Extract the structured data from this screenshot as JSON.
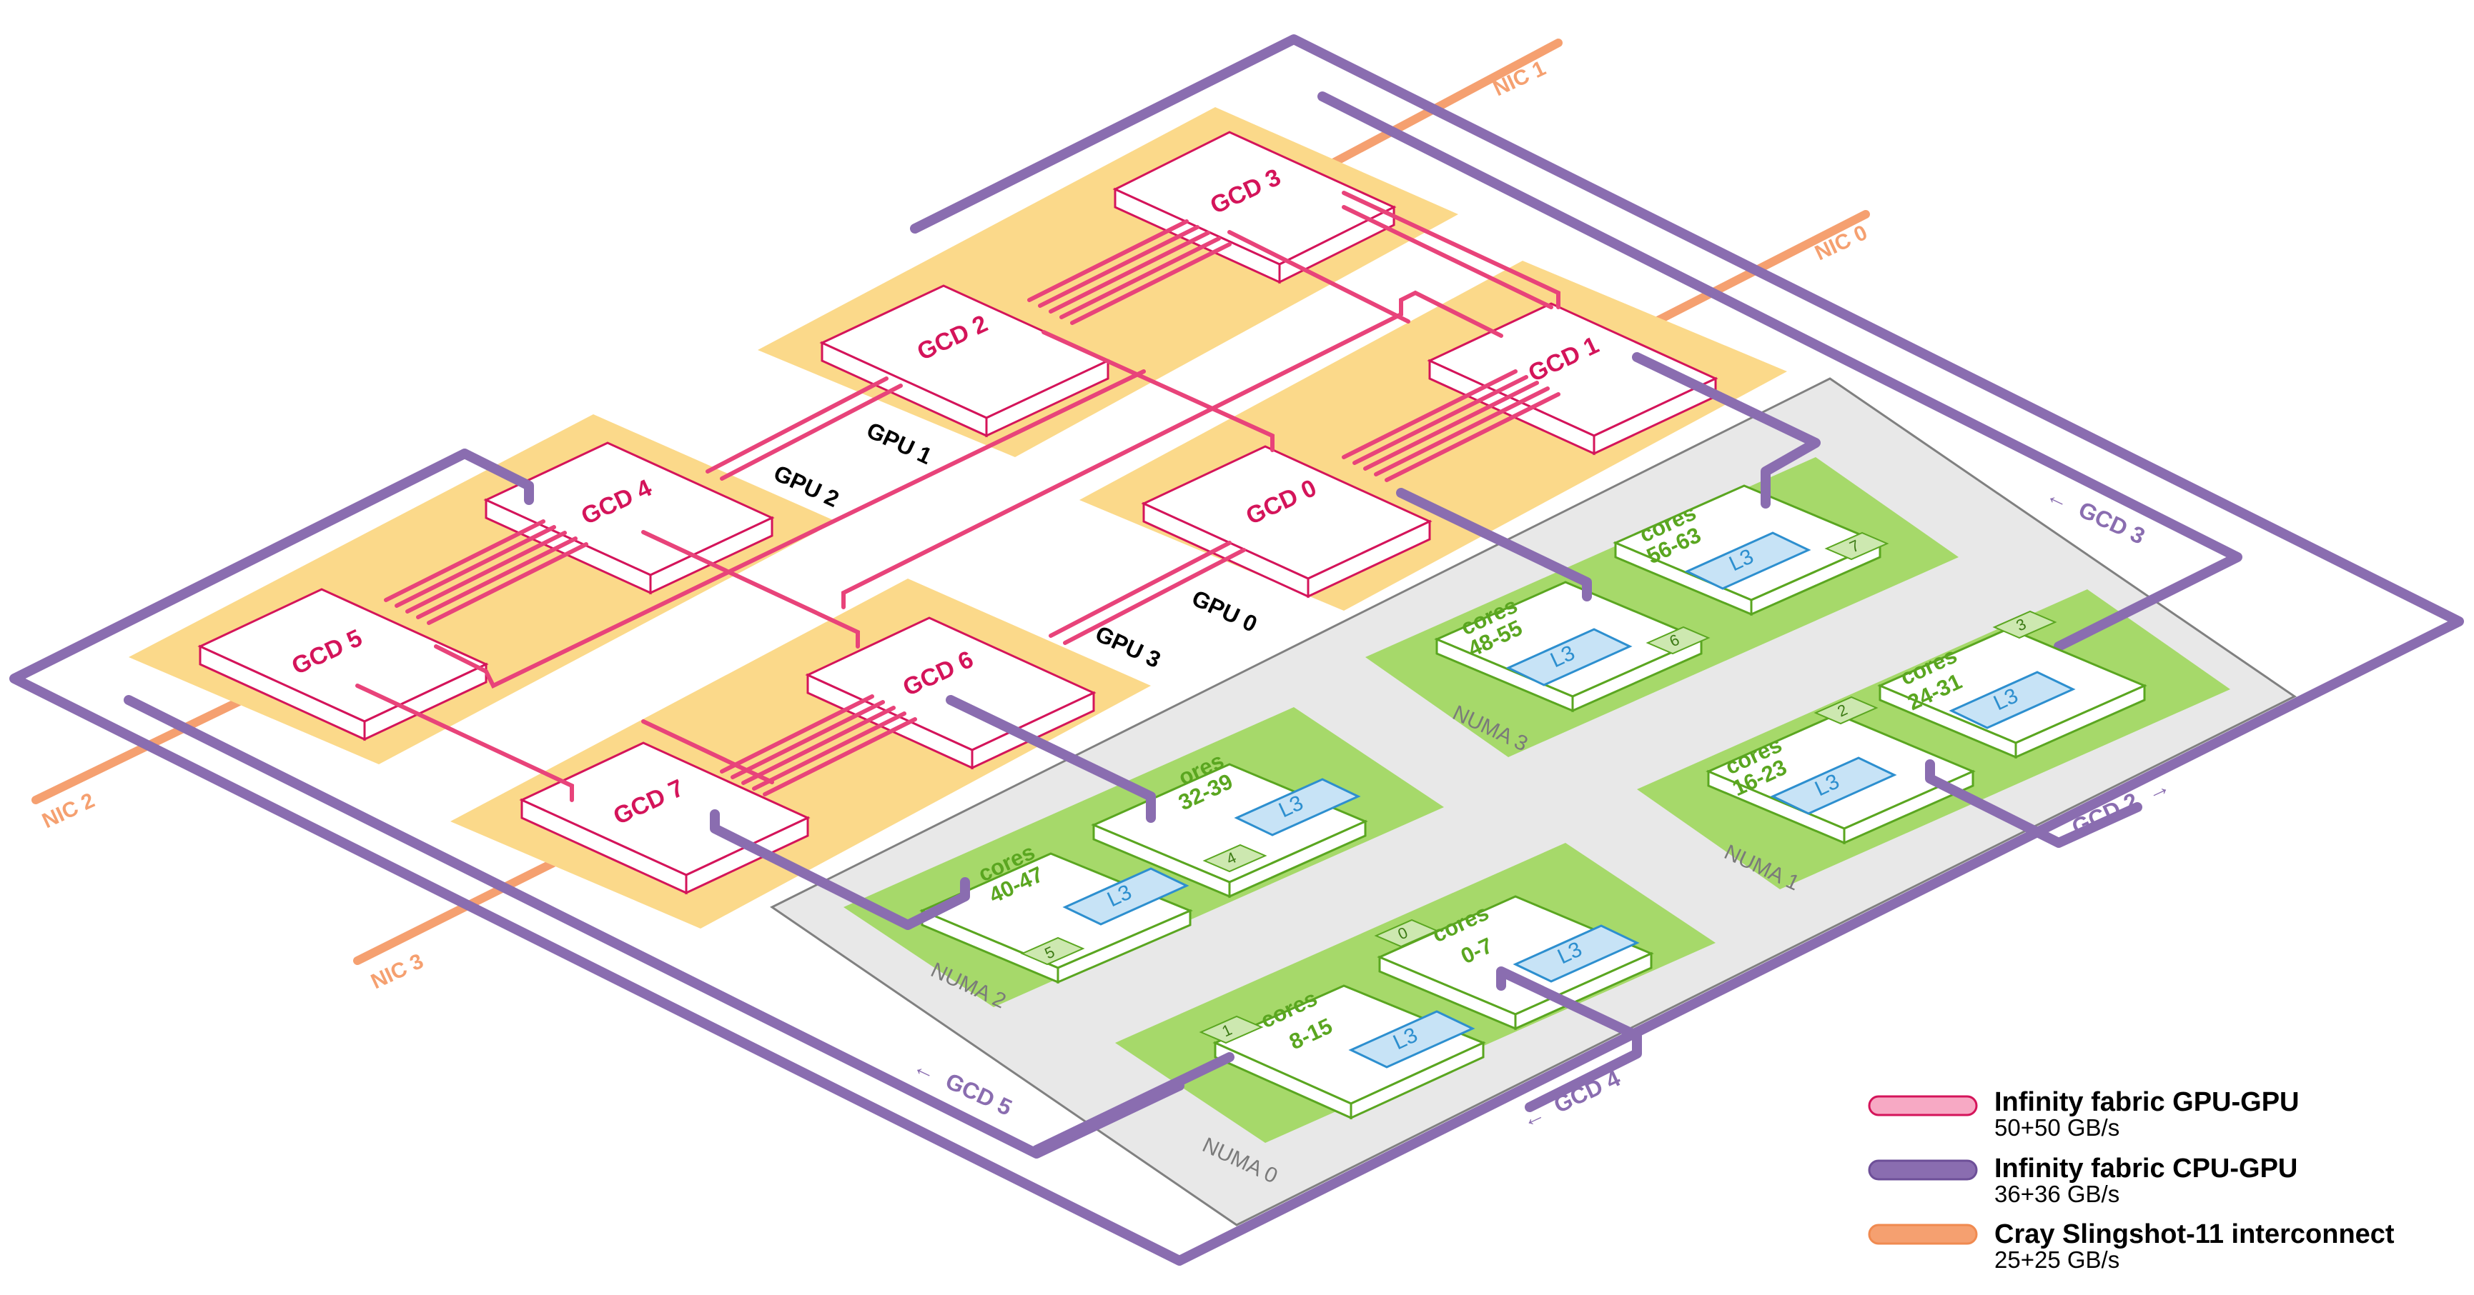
{
  "colors": {
    "gpu_gpu": "#e8437a",
    "cpu_gpu": "#8a6db0",
    "slingshot": "#f5a070",
    "gpu_pad": "#fbd98a",
    "numa_pad": "#a6d96a",
    "die_gray": "#e6e6e6",
    "l3_fill": "#c7e3f6",
    "l3_stroke": "#2d8fcf",
    "core_text": "#5aa620",
    "gcd_text": "#d4145a"
  },
  "gcds": [
    {
      "label": "GCD 0"
    },
    {
      "label": "GCD 1"
    },
    {
      "label": "GCD 2"
    },
    {
      "label": "GCD 3"
    },
    {
      "label": "GCD 4"
    },
    {
      "label": "GCD 5"
    },
    {
      "label": "GCD 6"
    },
    {
      "label": "GCD 7"
    }
  ],
  "gpus": [
    {
      "label": "GPU 0"
    },
    {
      "label": "GPU 1"
    },
    {
      "label": "GPU 2"
    },
    {
      "label": "GPU 3"
    }
  ],
  "numas": [
    {
      "label": "NUMA 0"
    },
    {
      "label": "NUMA 1"
    },
    {
      "label": "NUMA 2"
    },
    {
      "label": "NUMA 3"
    }
  ],
  "ccds": [
    {
      "cores_word": "cores",
      "range": "0-7",
      "l3": "L3",
      "id": "0"
    },
    {
      "cores_word": "cores",
      "range": "8-15",
      "l3": "L3",
      "id": "1"
    },
    {
      "cores_word": "cores",
      "range": "16-23",
      "l3": "L3",
      "id": "2"
    },
    {
      "cores_word": "cores",
      "range": "24-31",
      "l3": "L3",
      "id": "3"
    },
    {
      "cores_word": "ores",
      "range": "32-39",
      "l3": "L3",
      "id": "4"
    },
    {
      "cores_word": "cores",
      "range": "40-47",
      "l3": "L3",
      "id": "5"
    },
    {
      "cores_word": "cores",
      "range": "48-55",
      "l3": "L3",
      "id": "6"
    },
    {
      "cores_word": "cores",
      "range": "56-63",
      "l3": "L3",
      "id": "7"
    }
  ],
  "nics": [
    {
      "label": "NIC 0"
    },
    {
      "label": "NIC 1"
    },
    {
      "label": "NIC 2"
    },
    {
      "label": "NIC 3"
    }
  ],
  "offpage_links": [
    {
      "label": "GCD 2",
      "arrow": "→"
    },
    {
      "label": "GCD 3",
      "arrow": "←"
    },
    {
      "label": "GCD 4",
      "arrow": "←"
    },
    {
      "label": "GCD 5",
      "arrow": "←"
    }
  ],
  "legend": [
    {
      "title": "Infinity fabric GPU-GPU",
      "subtitle": "50+50 GB/s"
    },
    {
      "title": "Infinity fabric CPU-GPU",
      "subtitle": "36+36 GB/s"
    },
    {
      "title": "Cray Slingshot-11 interconnect",
      "subtitle": "25+25 GB/s"
    }
  ]
}
